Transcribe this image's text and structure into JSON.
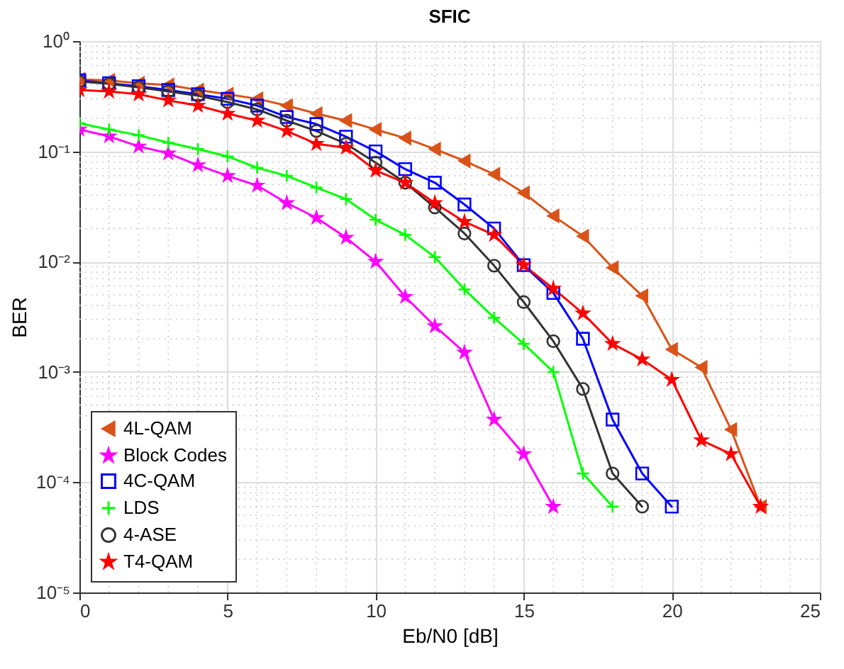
{
  "chart_data": {
    "type": "line",
    "title": "SFIC",
    "xlabel": "Eb/N0 [dB]",
    "ylabel": "BER",
    "log": "y",
    "grid": true,
    "legend": "bottom left",
    "line_style": "solid",
    "xlim": [
      0,
      25
    ],
    "xticks": [
      0,
      5,
      10,
      15,
      20,
      25
    ],
    "ylim": [
      1e-05,
      1
    ],
    "yticks": [
      {
        "value": 1e-05,
        "label": "10⁻⁵"
      },
      {
        "value": 0.0001,
        "label": "10⁻⁴"
      },
      {
        "value": 0.001,
        "label": "10⁻³"
      },
      {
        "value": 0.01,
        "label": "10⁻²"
      },
      {
        "value": 0.1,
        "label": "10⁻¹"
      },
      {
        "value": 1,
        "label": "10⁰"
      }
    ],
    "series": [
      {
        "name": "4L-QAM",
        "color": "#d95319",
        "marker": "triangle",
        "x": [
          0,
          1,
          2,
          3,
          4,
          5,
          6,
          7,
          8,
          9,
          10,
          11,
          12,
          13,
          14,
          15,
          16,
          17,
          18,
          19,
          20,
          21,
          22,
          23
        ],
        "values": [
          0.45,
          0.44,
          0.415,
          0.4,
          0.36,
          0.33,
          0.3,
          0.26,
          0.22,
          0.19,
          0.158,
          0.132,
          0.105,
          0.082,
          0.062,
          0.042,
          0.026,
          0.017,
          0.0088,
          0.0049,
          0.0016,
          0.0011,
          0.0003,
          6e-05
        ]
      },
      {
        "name": "Block Codes",
        "color": "#ff00ff",
        "marker": "star",
        "x": [
          0,
          1,
          2,
          3,
          4,
          5,
          6,
          7,
          8,
          9,
          10,
          11,
          12,
          13,
          14,
          15,
          16
        ],
        "values": [
          0.158,
          0.137,
          0.111,
          0.096,
          0.075,
          0.06,
          0.049,
          0.034,
          0.025,
          0.0165,
          0.01,
          0.0048,
          0.0026,
          0.0015,
          0.00037,
          0.00018,
          6e-05
        ]
      },
      {
        "name": "4C-QAM",
        "color": "#0000ff",
        "marker": "square",
        "x": [
          0,
          1,
          2,
          3,
          4,
          5,
          6,
          7,
          8,
          9,
          10,
          11,
          12,
          13,
          14,
          15,
          16,
          17,
          18,
          19,
          20
        ],
        "values": [
          0.44,
          0.415,
          0.39,
          0.36,
          0.33,
          0.3,
          0.26,
          0.205,
          0.177,
          0.136,
          0.1,
          0.069,
          0.052,
          0.033,
          0.02,
          0.0093,
          0.0052,
          0.002,
          0.00037,
          0.00012,
          6e-05
        ]
      },
      {
        "name": "LDS",
        "color": "#00ff00",
        "marker": "cross",
        "x": [
          0,
          1,
          2,
          3,
          4,
          5,
          6,
          7,
          8,
          9,
          10,
          11,
          12,
          13,
          14,
          15,
          16,
          17,
          18
        ],
        "values": [
          0.18,
          0.158,
          0.14,
          0.12,
          0.105,
          0.09,
          0.071,
          0.06,
          0.047,
          0.037,
          0.024,
          0.0175,
          0.011,
          0.0056,
          0.0031,
          0.0018,
          0.001,
          0.00012,
          6e-05
        ]
      },
      {
        "name": "4-ASE",
        "color": "#333333",
        "marker": "circle",
        "x": [
          0,
          1,
          2,
          3,
          4,
          5,
          6,
          7,
          8,
          9,
          10,
          11,
          12,
          13,
          14,
          15,
          16,
          17,
          18,
          19
        ],
        "values": [
          0.43,
          0.41,
          0.38,
          0.35,
          0.32,
          0.28,
          0.24,
          0.19,
          0.153,
          0.117,
          0.079,
          0.052,
          0.031,
          0.018,
          0.0092,
          0.0043,
          0.0019,
          0.0007,
          0.00012,
          6e-05
        ]
      },
      {
        "name": "T4-QAM",
        "color": "#ff0000",
        "marker": "star",
        "x": [
          0,
          1,
          2,
          3,
          4,
          5,
          6,
          7,
          8,
          9,
          10,
          11,
          12,
          13,
          14,
          15,
          16,
          17,
          18,
          19,
          20,
          21,
          22,
          23
        ],
        "values": [
          0.36,
          0.35,
          0.33,
          0.29,
          0.26,
          0.22,
          0.19,
          0.153,
          0.117,
          0.108,
          0.067,
          0.052,
          0.034,
          0.023,
          0.0175,
          0.0093,
          0.0057,
          0.0034,
          0.0018,
          0.0013,
          0.00085,
          0.00024,
          0.00018,
          6e-05
        ]
      }
    ]
  }
}
